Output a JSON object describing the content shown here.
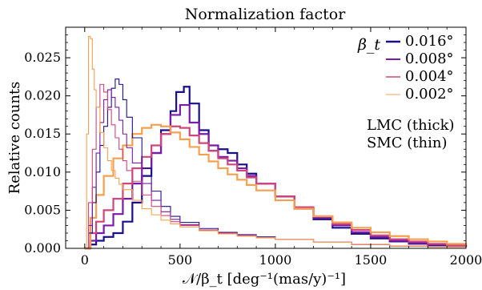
{
  "chart_data": {
    "type": "line",
    "title": "Normalization factor",
    "xlabel": "𝒩/β_t [deg⁻¹(mas/y)⁻¹]",
    "ylabel": "Relative counts",
    "xlim": [
      -100,
      2000
    ],
    "ylim": [
      0,
      0.029
    ],
    "xticks": [
      0,
      500,
      1000,
      1500,
      2000
    ],
    "yticks": [
      0.0,
      0.005,
      0.01,
      0.015,
      0.02,
      0.025
    ],
    "ytick_labels": [
      "0.000",
      "0.005",
      "0.010",
      "0.015",
      "0.020",
      "0.025"
    ],
    "xtick_labels": [
      "0",
      "500",
      "1000",
      "1500",
      "2000"
    ],
    "legend": {
      "title": "β_t",
      "placement": "top-right",
      "entries": [
        "0.016°",
        "0.008°",
        "0.004°",
        "0.002°"
      ],
      "annotation_lines": [
        "LMC (thick)",
        "SMC (thin)"
      ]
    },
    "grid": false,
    "colors": {
      "0.016": "#1a0f8a",
      "0.008": "#7a1aa8",
      "0.004": "#d0457a",
      "0.002": "#f5a050"
    },
    "series": [
      {
        "name": "0.016°",
        "group": "LMC",
        "color": "#1a0f8a",
        "x": [
          0,
          30,
          60,
          100,
          150,
          200,
          250,
          300,
          350,
          400,
          450,
          480,
          520,
          550,
          600,
          650,
          700,
          750,
          800,
          850,
          900,
          1000,
          1100,
          1200,
          1300,
          1400,
          1500,
          1600,
          1700,
          1800,
          1900,
          2000
        ],
        "y": [
          0.0,
          0.0005,
          0.001,
          0.0015,
          0.002,
          0.0035,
          0.006,
          0.0095,
          0.0125,
          0.0155,
          0.018,
          0.0205,
          0.0212,
          0.019,
          0.0155,
          0.0128,
          0.013,
          0.0125,
          0.011,
          0.0098,
          0.0085,
          0.0068,
          0.0052,
          0.0038,
          0.0027,
          0.0019,
          0.0013,
          0.0009,
          0.0006,
          0.0004,
          0.0003,
          0.0002
        ]
      },
      {
        "name": "0.008°",
        "group": "LMC",
        "color": "#7a1aa8",
        "x": [
          0,
          30,
          60,
          100,
          150,
          200,
          250,
          300,
          350,
          400,
          450,
          500,
          550,
          600,
          650,
          700,
          750,
          800,
          850,
          900,
          1000,
          1100,
          1200,
          1300,
          1400,
          1500,
          1600,
          1700,
          1800,
          1900,
          2000
        ],
        "y": [
          0.0,
          0.001,
          0.002,
          0.003,
          0.0045,
          0.0065,
          0.0085,
          0.0105,
          0.0125,
          0.015,
          0.0175,
          0.0188,
          0.0165,
          0.015,
          0.0135,
          0.012,
          0.0115,
          0.0105,
          0.0095,
          0.0085,
          0.0068,
          0.0053,
          0.004,
          0.003,
          0.0021,
          0.0015,
          0.001,
          0.0007,
          0.0005,
          0.0003,
          0.0002
        ]
      },
      {
        "name": "0.004°",
        "group": "LMC",
        "color": "#d0457a",
        "x": [
          0,
          30,
          60,
          100,
          150,
          200,
          250,
          300,
          350,
          400,
          450,
          500,
          550,
          600,
          650,
          700,
          750,
          800,
          850,
          900,
          1000,
          1100,
          1200,
          1300,
          1400,
          1500,
          1600,
          1700,
          1800,
          1900,
          2000
        ],
        "y": [
          0.0,
          0.002,
          0.0035,
          0.005,
          0.0065,
          0.0085,
          0.0105,
          0.012,
          0.0135,
          0.015,
          0.016,
          0.0158,
          0.0148,
          0.0138,
          0.0128,
          0.0118,
          0.011,
          0.0102,
          0.0093,
          0.0085,
          0.0068,
          0.0054,
          0.0042,
          0.0032,
          0.0024,
          0.0017,
          0.0012,
          0.0009,
          0.0006,
          0.0004,
          0.0003
        ]
      },
      {
        "name": "0.002°",
        "group": "LMC",
        "color": "#f5a050",
        "x": [
          0,
          30,
          60,
          100,
          150,
          200,
          250,
          300,
          350,
          400,
          450,
          500,
          550,
          600,
          650,
          700,
          750,
          800,
          850,
          900,
          1000,
          1100,
          1200,
          1300,
          1400,
          1500,
          1600,
          1700,
          1800,
          1900,
          2000
        ],
        "y": [
          0.0,
          0.004,
          0.007,
          0.0095,
          0.0118,
          0.0135,
          0.015,
          0.0158,
          0.0162,
          0.016,
          0.0152,
          0.0143,
          0.0133,
          0.0123,
          0.0114,
          0.0105,
          0.0097,
          0.009,
          0.0083,
          0.0076,
          0.0063,
          0.0052,
          0.0042,
          0.0034,
          0.0027,
          0.0021,
          0.0016,
          0.0012,
          0.0009,
          0.0006,
          0.0004
        ]
      },
      {
        "name": "0.016°",
        "group": "SMC",
        "color": "#1a0f8a",
        "x": [
          0,
          20,
          40,
          60,
          80,
          100,
          120,
          140,
          160,
          180,
          200,
          220,
          250,
          300,
          350,
          400,
          450,
          500,
          600,
          700,
          800,
          900,
          1000,
          1200,
          1400,
          1600,
          1800,
          2000
        ],
        "y": [
          0.0,
          0.002,
          0.006,
          0.01,
          0.0135,
          0.016,
          0.0185,
          0.021,
          0.0222,
          0.0215,
          0.0195,
          0.0172,
          0.0145,
          0.0105,
          0.0075,
          0.0055,
          0.0042,
          0.0034,
          0.0026,
          0.0021,
          0.0018,
          0.0015,
          0.0012,
          0.0008,
          0.0005,
          0.0003,
          0.0002,
          0.0001
        ]
      },
      {
        "name": "0.008°",
        "group": "SMC",
        "color": "#7a1aa8",
        "x": [
          0,
          20,
          40,
          60,
          80,
          100,
          120,
          140,
          160,
          180,
          200,
          220,
          250,
          300,
          350,
          400,
          450,
          500,
          600,
          700,
          800,
          900,
          1000,
          1200,
          1400,
          1600,
          1800,
          2000
        ],
        "y": [
          0.0,
          0.003,
          0.008,
          0.0125,
          0.0165,
          0.0195,
          0.0208,
          0.0198,
          0.0185,
          0.0168,
          0.015,
          0.0132,
          0.0112,
          0.0085,
          0.0063,
          0.0048,
          0.0038,
          0.0031,
          0.0024,
          0.002,
          0.0017,
          0.0014,
          0.0012,
          0.0008,
          0.0005,
          0.0003,
          0.0002,
          0.0001
        ]
      },
      {
        "name": "0.004°",
        "group": "SMC",
        "color": "#d0457a",
        "x": [
          0,
          20,
          40,
          60,
          80,
          100,
          120,
          140,
          160,
          180,
          200,
          220,
          250,
          300,
          350,
          400,
          450,
          500,
          600,
          700,
          800,
          900,
          1000,
          1200,
          1400,
          1600,
          1800,
          2000
        ],
        "y": [
          0.0,
          0.006,
          0.013,
          0.0185,
          0.0215,
          0.0205,
          0.0182,
          0.0162,
          0.0145,
          0.013,
          0.0115,
          0.0102,
          0.0088,
          0.007,
          0.0055,
          0.0043,
          0.0035,
          0.003,
          0.0024,
          0.002,
          0.0017,
          0.0014,
          0.0012,
          0.0008,
          0.0005,
          0.0003,
          0.0002,
          0.0001
        ]
      },
      {
        "name": "0.002°",
        "group": "SMC",
        "color": "#f5a050",
        "x": [
          0,
          10,
          20,
          30,
          40,
          50,
          60,
          80,
          100,
          120,
          140,
          160,
          180,
          200,
          250,
          300,
          350,
          400,
          450,
          500,
          600,
          700,
          800,
          900,
          1000,
          1200,
          1400,
          1600,
          1800,
          2000
        ],
        "y": [
          0.0,
          0.015,
          0.0278,
          0.0275,
          0.0235,
          0.0208,
          0.0185,
          0.0152,
          0.0132,
          0.0115,
          0.0102,
          0.0092,
          0.0084,
          0.0077,
          0.0063,
          0.0052,
          0.0044,
          0.0037,
          0.0032,
          0.0028,
          0.0023,
          0.0019,
          0.0016,
          0.0014,
          0.0012,
          0.0008,
          0.0005,
          0.0003,
          0.0002,
          0.0001
        ]
      }
    ]
  }
}
